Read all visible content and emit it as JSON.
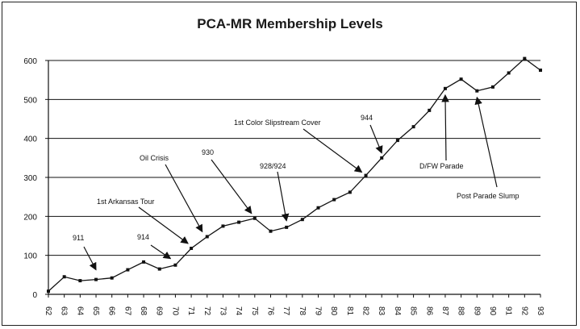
{
  "chart_data": {
    "type": "line",
    "title": "PCA-MR Membership Levels",
    "xlabel": "",
    "ylabel": "",
    "ylim": [
      0,
      600
    ],
    "yticks": [
      0,
      100,
      200,
      300,
      400,
      500,
      600
    ],
    "grid": true,
    "x": [
      "62",
      "63",
      "64",
      "65",
      "66",
      "67",
      "68",
      "69",
      "70",
      "71",
      "72",
      "73",
      "74",
      "75",
      "76",
      "77",
      "78",
      "79",
      "80",
      "81",
      "82",
      "83",
      "84",
      "85",
      "86",
      "87",
      "88",
      "89",
      "90",
      "91",
      "92",
      "93"
    ],
    "values": [
      8,
      45,
      35,
      38,
      42,
      63,
      83,
      65,
      75,
      118,
      148,
      175,
      185,
      195,
      162,
      172,
      192,
      222,
      243,
      262,
      305,
      350,
      395,
      430,
      472,
      528,
      552,
      522,
      532,
      568,
      605,
      575
    ],
    "annotations": [
      {
        "text": "911",
        "target_x": "65"
      },
      {
        "text": "914",
        "target_x": "70"
      },
      {
        "text": "1st Arkansas Tour",
        "target_x": "71"
      },
      {
        "text": "Oil Crisis",
        "target_x": "72"
      },
      {
        "text": "930",
        "target_x": "75"
      },
      {
        "text": "928/924",
        "target_x": "77"
      },
      {
        "text": "1st Color Slipstream Cover",
        "target_x": "82"
      },
      {
        "text": "944",
        "target_x": "83"
      },
      {
        "text": "D/FW Parade",
        "target_x": "87"
      },
      {
        "text": "Post Parade Slump",
        "target_x": "89"
      }
    ]
  }
}
